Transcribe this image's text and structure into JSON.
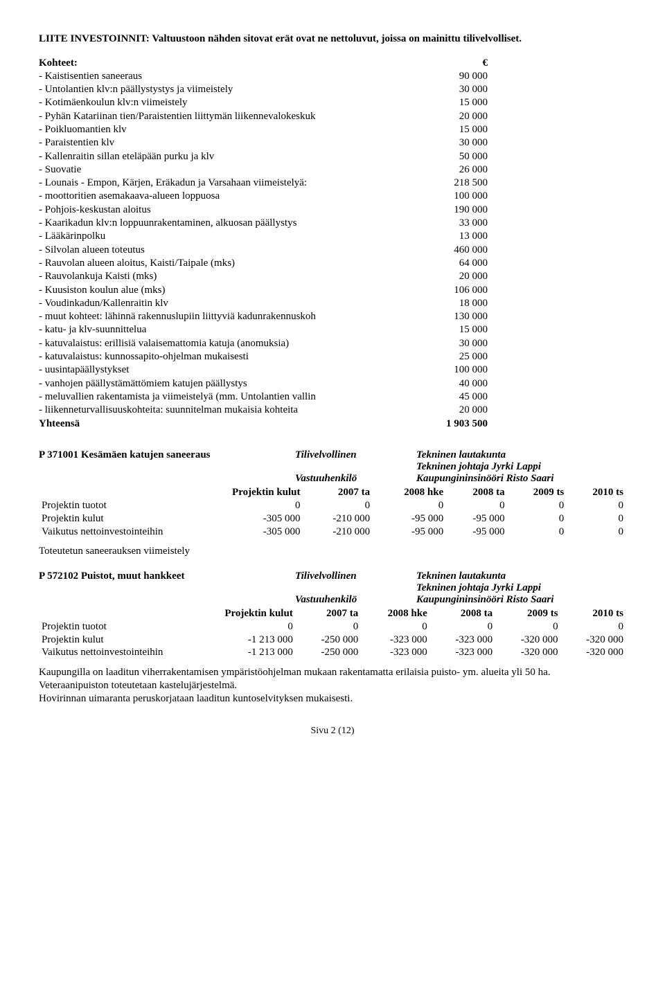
{
  "title": "LIITE INVESTOINNIT:  Valtuustoon nähden sitovat erät ovat ne nettoluvut, joissa on mainittu tilivelvolliset.",
  "kohteet_header_label": "Kohteet:",
  "kohteet_header_currency": "€",
  "kohteet": [
    {
      "label": " - Kaistisentien saneeraus",
      "value": "90 000"
    },
    {
      "label": " - Untolantien klv:n päällystystys ja viimeistely",
      "value": "30 000"
    },
    {
      "label": " - Kotimäenkoulun klv:n viimeistely",
      "value": "15 000"
    },
    {
      "label": " - Pyhän Katariinan tien/Paraistentien liittymän liikennevalokeskuk",
      "value": "20 000"
    },
    {
      "label": " - Poikluomantien klv",
      "value": "15 000"
    },
    {
      "label": " - Paraistentien klv",
      "value": "30 000"
    },
    {
      "label": " - Kallenraitin sillan eteläpään purku ja klv",
      "value": "50 000"
    },
    {
      "label": " - Suovatie",
      "value": "26 000"
    },
    {
      "label": " - Lounais - Empon, Kärjen, Eräkadun ja Varsahaan viimeistelyä:",
      "value": "218 500"
    },
    {
      "label": " - moottoritien asemakaava-alueen loppuosa",
      "value": "100 000"
    },
    {
      "label": " - Pohjois-keskustan aloitus",
      "value": "190 000"
    },
    {
      "label": " - Kaarikadun klv:n loppuunrakentaminen, alkuosan päällystys",
      "value": "33 000"
    },
    {
      "label": " - Lääkärinpolku",
      "value": "13 000"
    },
    {
      "label": " - Silvolan alueen toteutus",
      "value": "460 000"
    },
    {
      "label": " - Rauvolan alueen aloitus, Kaisti/Taipale (mks)",
      "value": "64 000"
    },
    {
      "label": " - Rauvolankuja Kaisti (mks)",
      "value": "20 000"
    },
    {
      "label": " - Kuusiston koulun alue (mks)",
      "value": "106 000"
    },
    {
      "label": " - Voudinkadun/Kallenraitin klv",
      "value": "18 000"
    },
    {
      "label": " - muut kohteet: lähinnä rakennuslupiin liittyviä kadunrakennuskoh",
      "value": "130 000"
    },
    {
      "label": " - katu- ja klv-suunnittelua",
      "value": "15 000"
    },
    {
      "label": " - katuvalaistus: erillisiä valaisemattomia katuja (anomuksia)",
      "value": "30 000"
    },
    {
      "label": " - katuvalaistus: kunnossapito-ohjelman mukaisesti",
      "value": "25 000"
    },
    {
      "label": " - uusintapäällystykset",
      "value": "100 000"
    },
    {
      "label": " - vanhojen päällystämättömiem katujen päällystys",
      "value": "40 000"
    },
    {
      "label": " - meluvallien rakentamista ja viimeistelyä (mm. Untolantien vallin",
      "value": "45 000"
    },
    {
      "label": " - liikenneturvallisuuskohteita: suunnitelman mukaisia kohteita",
      "value": "20 000"
    }
  ],
  "kohteet_total_label": "Yhteensä",
  "kohteet_total_value": "1 903 500",
  "p1": {
    "code": "P 371001 Kesämäen katujen saneeraus",
    "tv_label": "Tilivelvollinen",
    "tv_value": "Tekninen lautakunta",
    "tv_value2": "Tekninen johtaja Jyrki Lappi",
    "vh_label": "Vastuuhenkilö",
    "vh_value": "Kaupungininsinööri Risto Saari",
    "columns": [
      "",
      "Projektin kulut",
      "2007 ta",
      "2008 hke",
      "2008 ta",
      "2009 ts",
      "2010 ts"
    ],
    "rows": [
      {
        "label": "Projektin tuotot",
        "c": [
          "0",
          "0",
          "0",
          "0",
          "0",
          "0"
        ]
      },
      {
        "label": "Projektin kulut",
        "c": [
          "-305 000",
          "-210 000",
          "-95 000",
          "-95 000",
          "0",
          "0"
        ]
      },
      {
        "label": "Vaikutus nettoinvestointeihin",
        "c": [
          "-305 000",
          "-210 000",
          "-95 000",
          "-95 000",
          "0",
          "0"
        ]
      }
    ],
    "note": "Toteutetun saneerauksen viimeistely"
  },
  "p2": {
    "code": "P  572102 Puistot, muut hankkeet",
    "tv_label": "Tilivelvollinen",
    "tv_value": "Tekninen lautakunta",
    "tv_value2": "Tekninen johtaja Jyrki Lappi",
    "vh_label": "Vastuuhenkilö",
    "vh_value": "Kaupungininsinööri Risto Saari",
    "columns": [
      "",
      "Projektin kulut",
      "2007 ta",
      "2008 hke",
      "2008 ta",
      "2009 ts",
      "2010 ts"
    ],
    "rows": [
      {
        "label": "Projektin tuotot",
        "c": [
          "0",
          "0",
          "0",
          "0",
          "0",
          "0"
        ]
      },
      {
        "label": "Projektin kulut",
        "c": [
          "-1 213 000",
          "-250 000",
          "-323 000",
          "-323 000",
          "-320 000",
          "-320 000"
        ]
      },
      {
        "label": "Vaikutus nettoinvestointeihin",
        "c": [
          "-1 213 000",
          "-250 000",
          "-323 000",
          "-323 000",
          "-320 000",
          "-320 000"
        ]
      }
    ],
    "note1": "Kaupungilla on laaditun viherrakentamisen ympäristöohjelman mukaan rakentamatta erilaisia puisto- ym. alueita yli 50 ha.",
    "note2": "Veteraanipuiston toteutetaan kastelujärjestelmä.",
    "note3": "Hovirinnan uimaranta peruskorjataan laaditun kuntoselvityksen mukaisesti."
  },
  "footer": "Sivu 2 (12)"
}
